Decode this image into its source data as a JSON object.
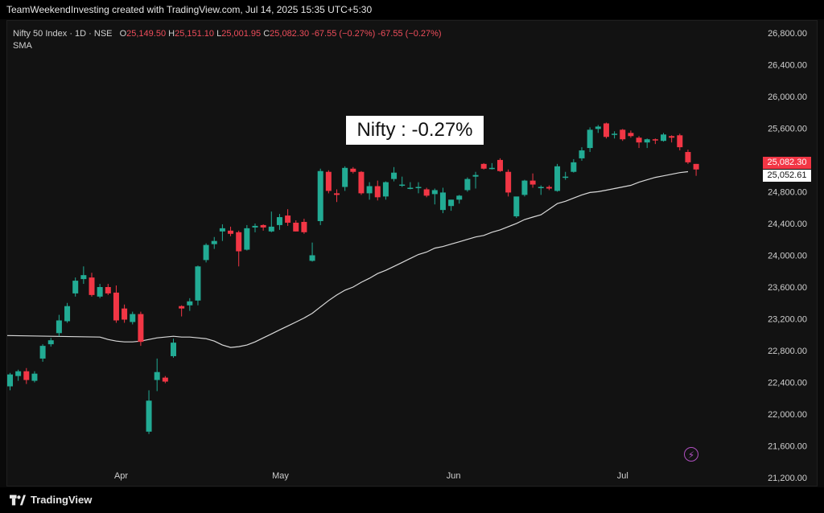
{
  "header": {
    "title": "TeamWeekendInvesting created with TradingView.com, Jul 14, 2025 15:35 UTC+5:30"
  },
  "legend": {
    "symbol": "Nifty 50 Index · 1D · NSE",
    "o_label": "O",
    "o_value": "25,149.50",
    "h_label": "H",
    "h_value": "25,151.10",
    "l_label": "L",
    "l_value": "25,001.95",
    "c_label": "C",
    "c_value": "25,082.30",
    "change": "-67.55 (−0.27%)",
    "change2": "-67.55 (−0.27%)",
    "indicator": "SMA"
  },
  "annotation": "Nifty : -0.27%",
  "price_label": "25,082.30",
  "sma_label": "25,052.61",
  "footer": {
    "brand": "TradingView"
  },
  "colors": {
    "up": "#22ab94",
    "down": "#f23645",
    "sma": "#d9d9d9",
    "accent": "#9c27b0"
  },
  "chart_data": {
    "type": "candlestick",
    "y_ticks": [
      "26,800.00",
      "26,400.00",
      "26,000.00",
      "25,600.00",
      "25,200.00",
      "24,800.00",
      "24,400.00",
      "24,000.00",
      "23,600.00",
      "23,200.00",
      "22,800.00",
      "22,400.00",
      "22,000.00",
      "21,600.00",
      "21,200.00"
    ],
    "ylim": [
      21100,
      26950
    ],
    "x_labels": [
      {
        "label": "Apr",
        "index": 13.6
      },
      {
        "label": "May",
        "index": 33.1
      },
      {
        "label": "Jun",
        "index": 54.3
      },
      {
        "label": "Jul",
        "index": 75.0
      }
    ],
    "grid": false,
    "candles": [
      {
        "o": 22350,
        "h": 22520,
        "l": 22300,
        "c": 22500
      },
      {
        "o": 22480,
        "h": 22560,
        "l": 22420,
        "c": 22540
      },
      {
        "o": 22540,
        "h": 22580,
        "l": 22380,
        "c": 22430
      },
      {
        "o": 22420,
        "h": 22540,
        "l": 22400,
        "c": 22510
      },
      {
        "o": 22700,
        "h": 22880,
        "l": 22660,
        "c": 22860
      },
      {
        "o": 22880,
        "h": 22960,
        "l": 22850,
        "c": 22930
      },
      {
        "o": 23020,
        "h": 23250,
        "l": 22980,
        "c": 23180
      },
      {
        "o": 23170,
        "h": 23400,
        "l": 23150,
        "c": 23360
      },
      {
        "o": 23520,
        "h": 23720,
        "l": 23480,
        "c": 23680
      },
      {
        "o": 23700,
        "h": 23860,
        "l": 23640,
        "c": 23750
      },
      {
        "o": 23720,
        "h": 23780,
        "l": 23480,
        "c": 23500
      },
      {
        "o": 23480,
        "h": 23640,
        "l": 23460,
        "c": 23600
      },
      {
        "o": 23600,
        "h": 23640,
        "l": 23500,
        "c": 23520
      },
      {
        "o": 23530,
        "h": 23620,
        "l": 23150,
        "c": 23180
      },
      {
        "o": 23330,
        "h": 23380,
        "l": 23150,
        "c": 23190
      },
      {
        "o": 23160,
        "h": 23290,
        "l": 23130,
        "c": 23260
      },
      {
        "o": 23260,
        "h": 23290,
        "l": 22860,
        "c": 22910
      },
      {
        "o": 21780,
        "h": 22300,
        "l": 21750,
        "c": 22170
      },
      {
        "o": 22430,
        "h": 22700,
        "l": 22290,
        "c": 22530
      },
      {
        "o": 22460,
        "h": 22480,
        "l": 22390,
        "c": 22410
      },
      {
        "o": 22730,
        "h": 22950,
        "l": 22710,
        "c": 22900
      },
      {
        "o": 23360,
        "h": 23370,
        "l": 23230,
        "c": 23330
      },
      {
        "o": 23370,
        "h": 23460,
        "l": 23300,
        "c": 23420
      },
      {
        "o": 23430,
        "h": 23870,
        "l": 23370,
        "c": 23860
      },
      {
        "o": 23940,
        "h": 24150,
        "l": 23910,
        "c": 24130
      },
      {
        "o": 24140,
        "h": 24230,
        "l": 24080,
        "c": 24180
      },
      {
        "o": 24300,
        "h": 24390,
        "l": 24180,
        "c": 24340
      },
      {
        "o": 24310,
        "h": 24360,
        "l": 24240,
        "c": 24270
      },
      {
        "o": 24290,
        "h": 24310,
        "l": 23860,
        "c": 24050
      },
      {
        "o": 24070,
        "h": 24380,
        "l": 24060,
        "c": 24340
      },
      {
        "o": 24350,
        "h": 24400,
        "l": 24290,
        "c": 24370
      },
      {
        "o": 24380,
        "h": 24390,
        "l": 24310,
        "c": 24350
      },
      {
        "o": 24300,
        "h": 24550,
        "l": 24290,
        "c": 24360
      },
      {
        "o": 24380,
        "h": 24520,
        "l": 24320,
        "c": 24480
      },
      {
        "o": 24500,
        "h": 24580,
        "l": 24370,
        "c": 24410
      },
      {
        "o": 24410,
        "h": 24440,
        "l": 24300,
        "c": 24300
      },
      {
        "o": 24420,
        "h": 24460,
        "l": 24270,
        "c": 24290
      },
      {
        "o": 23930,
        "h": 24160,
        "l": 23920,
        "c": 24000
      },
      {
        "o": 24430,
        "h": 25090,
        "l": 24380,
        "c": 25060
      },
      {
        "o": 25050,
        "h": 25070,
        "l": 24780,
        "c": 24810
      },
      {
        "o": 24780,
        "h": 24830,
        "l": 24670,
        "c": 24760
      },
      {
        "o": 24860,
        "h": 25120,
        "l": 24810,
        "c": 25100
      },
      {
        "o": 25090,
        "h": 25110,
        "l": 25030,
        "c": 25050
      },
      {
        "o": 25050,
        "h": 25060,
        "l": 24760,
        "c": 24780
      },
      {
        "o": 24780,
        "h": 24920,
        "l": 24700,
        "c": 24870
      },
      {
        "o": 24870,
        "h": 24940,
        "l": 24690,
        "c": 24730
      },
      {
        "o": 24740,
        "h": 24930,
        "l": 24700,
        "c": 24920
      },
      {
        "o": 24960,
        "h": 25110,
        "l": 24930,
        "c": 25040
      },
      {
        "o": 24890,
        "h": 24990,
        "l": 24860,
        "c": 24890
      },
      {
        "o": 24850,
        "h": 24920,
        "l": 24830,
        "c": 24850
      },
      {
        "o": 24860,
        "h": 24920,
        "l": 24780,
        "c": 24860
      },
      {
        "o": 24830,
        "h": 24850,
        "l": 24730,
        "c": 24750
      },
      {
        "o": 24770,
        "h": 24840,
        "l": 24640,
        "c": 24820
      },
      {
        "o": 24570,
        "h": 24850,
        "l": 24530,
        "c": 24790
      },
      {
        "o": 24620,
        "h": 24700,
        "l": 24560,
        "c": 24700
      },
      {
        "o": 24700,
        "h": 24760,
        "l": 24650,
        "c": 24750
      },
      {
        "o": 24820,
        "h": 24980,
        "l": 24800,
        "c": 24960
      },
      {
        "o": 24990,
        "h": 25050,
        "l": 24840,
        "c": 25010
      },
      {
        "o": 25150,
        "h": 25160,
        "l": 25080,
        "c": 25090
      },
      {
        "o": 25100,
        "h": 25160,
        "l": 25080,
        "c": 25100
      },
      {
        "o": 25200,
        "h": 25220,
        "l": 25050,
        "c": 25060
      },
      {
        "o": 25050,
        "h": 25080,
        "l": 24740,
        "c": 24790
      },
      {
        "o": 24490,
        "h": 24720,
        "l": 24470,
        "c": 24740
      },
      {
        "o": 24760,
        "h": 24950,
        "l": 24740,
        "c": 24940
      },
      {
        "o": 24940,
        "h": 25030,
        "l": 24850,
        "c": 24890
      },
      {
        "o": 24860,
        "h": 24880,
        "l": 24760,
        "c": 24860
      },
      {
        "o": 24860,
        "h": 24880,
        "l": 24820,
        "c": 24840
      },
      {
        "o": 24810,
        "h": 25150,
        "l": 24800,
        "c": 25120
      },
      {
        "o": 24990,
        "h": 25050,
        "l": 24950,
        "c": 24990
      },
      {
        "o": 25050,
        "h": 25210,
        "l": 25040,
        "c": 25170
      },
      {
        "o": 25220,
        "h": 25360,
        "l": 25190,
        "c": 25320
      },
      {
        "o": 25350,
        "h": 25610,
        "l": 25300,
        "c": 25580
      },
      {
        "o": 25590,
        "h": 25640,
        "l": 25540,
        "c": 25620
      },
      {
        "o": 25660,
        "h": 25670,
        "l": 25470,
        "c": 25490
      },
      {
        "o": 25520,
        "h": 25560,
        "l": 25470,
        "c": 25530
      },
      {
        "o": 25580,
        "h": 25590,
        "l": 25440,
        "c": 25460
      },
      {
        "o": 25540,
        "h": 25570,
        "l": 25480,
        "c": 25500
      },
      {
        "o": 25480,
        "h": 25500,
        "l": 25350,
        "c": 25420
      },
      {
        "o": 25420,
        "h": 25470,
        "l": 25350,
        "c": 25460
      },
      {
        "o": 25460,
        "h": 25470,
        "l": 25400,
        "c": 25450
      },
      {
        "o": 25440,
        "h": 25540,
        "l": 25430,
        "c": 25520
      },
      {
        "o": 25500,
        "h": 25510,
        "l": 25420,
        "c": 25480
      },
      {
        "o": 25510,
        "h": 25530,
        "l": 25320,
        "c": 25360
      },
      {
        "o": 25300,
        "h": 25330,
        "l": 25150,
        "c": 25170
      },
      {
        "o": 25150,
        "h": 25150,
        "l": 25000,
        "c": 25080
      }
    ],
    "sma": [
      22990,
      22970,
      22940,
      22920,
      22910,
      22910,
      22920,
      22940,
      22960,
      22970,
      22980,
      22970,
      22970,
      22960,
      22950,
      22920,
      22870,
      22840,
      22850,
      22870,
      22910,
      22960,
      23010,
      23060,
      23110,
      23160,
      23210,
      23270,
      23350,
      23430,
      23500,
      23560,
      23600,
      23660,
      23710,
      23770,
      23810,
      23860,
      23910,
      23960,
      24010,
      24040,
      24090,
      24110,
      24140,
      24170,
      24200,
      24230,
      24250,
      24290,
      24320,
      24360,
      24400,
      24450,
      24480,
      24510,
      24580,
      24650,
      24680,
      24720,
      24760,
      24790,
      24800,
      24820,
      24840,
      24860,
      24880,
      24920,
      24950,
      24980,
      25000,
      25020,
      25040,
      25052
    ]
  }
}
